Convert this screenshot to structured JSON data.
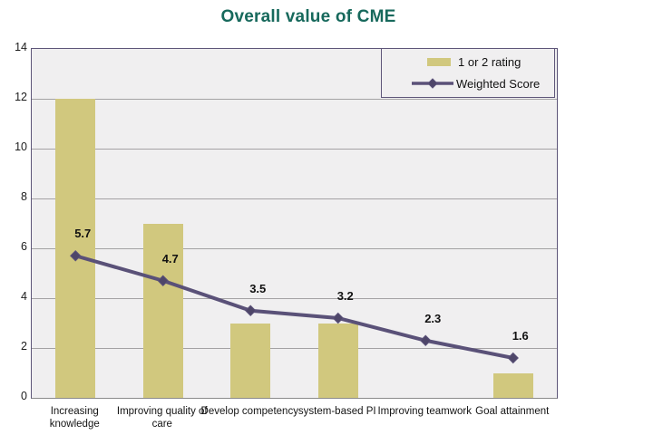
{
  "title": "Overall value of CME",
  "colors": {
    "title": "#17695C",
    "bar": "#D1C87E",
    "line": "#5A5178",
    "plot_bg": "#F0EFF0",
    "gridline": "#A4A2A4",
    "plot_border": "#5E5679"
  },
  "legend": {
    "items": [
      {
        "label": "1 or 2 rating",
        "swatch": "bar-swatch-icon"
      },
      {
        "label": "Weighted Score",
        "swatch": "line-diamond-swatch-icon"
      }
    ]
  },
  "chart_data": {
    "type": "bar+line combo",
    "title": "Overall value of CME",
    "categories": [
      "Increasing knowledge",
      "Improving quality of care",
      "Develop competency",
      "system-based PI",
      "Improving teamwork",
      "Goal attainment"
    ],
    "series": [
      {
        "name": "1 or 2 rating",
        "type": "bar",
        "values": [
          12,
          7,
          3,
          3,
          0,
          1
        ]
      },
      {
        "name": "Weighted Score",
        "type": "line",
        "values": [
          5.7,
          4.7,
          3.5,
          3.2,
          2.3,
          1.6
        ],
        "data_labels": [
          "5.7",
          "4.7",
          "3.5",
          "3.2",
          "2.3",
          "1.6"
        ]
      }
    ],
    "xlabel": "",
    "ylabel": "",
    "ylim": [
      0,
      14
    ],
    "yticks": [
      0,
      2,
      4,
      6,
      8,
      10,
      12,
      14
    ],
    "grid": true,
    "legend_position": "top-right inside plot"
  }
}
